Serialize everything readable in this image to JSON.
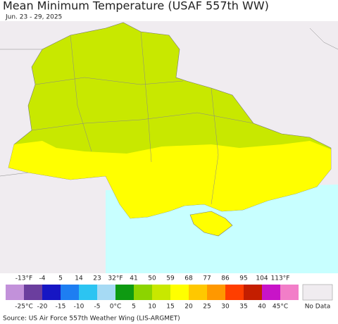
{
  "header": {
    "title": "Mean Minimum Temperature (USAF 557th WW)",
    "subtitle": "Jun. 23 - 29, 2025"
  },
  "legend": {
    "colors": [
      "#c291da",
      "#6b3e9e",
      "#1616c4",
      "#1e7ef2",
      "#2cc4f2",
      "#a6daf4",
      "#0e9a12",
      "#8cd400",
      "#c8e800",
      "#ffff00",
      "#ffc800",
      "#ff9800",
      "#ff3e00",
      "#c41e00",
      "#c814c8",
      "#f27ec8"
    ],
    "fahrenheit_labels": [
      "-13°F",
      "-4",
      "5",
      "14",
      "23",
      "32°F",
      "41",
      "50",
      "59",
      "68",
      "77",
      "86",
      "95",
      "104",
      "113°F"
    ],
    "celsius_labels": [
      "-25°C",
      "-20",
      "-15",
      "-10",
      "-5",
      "0°C",
      "5",
      "10",
      "15",
      "20",
      "25",
      "30",
      "35",
      "40",
      "45°C"
    ],
    "no_data_label": "No Data",
    "no_data_color": "#f0ecf0"
  },
  "footer": {
    "source": "Source: US Air Force 557th Weather Wing (LIS-ARGMET)"
  }
}
